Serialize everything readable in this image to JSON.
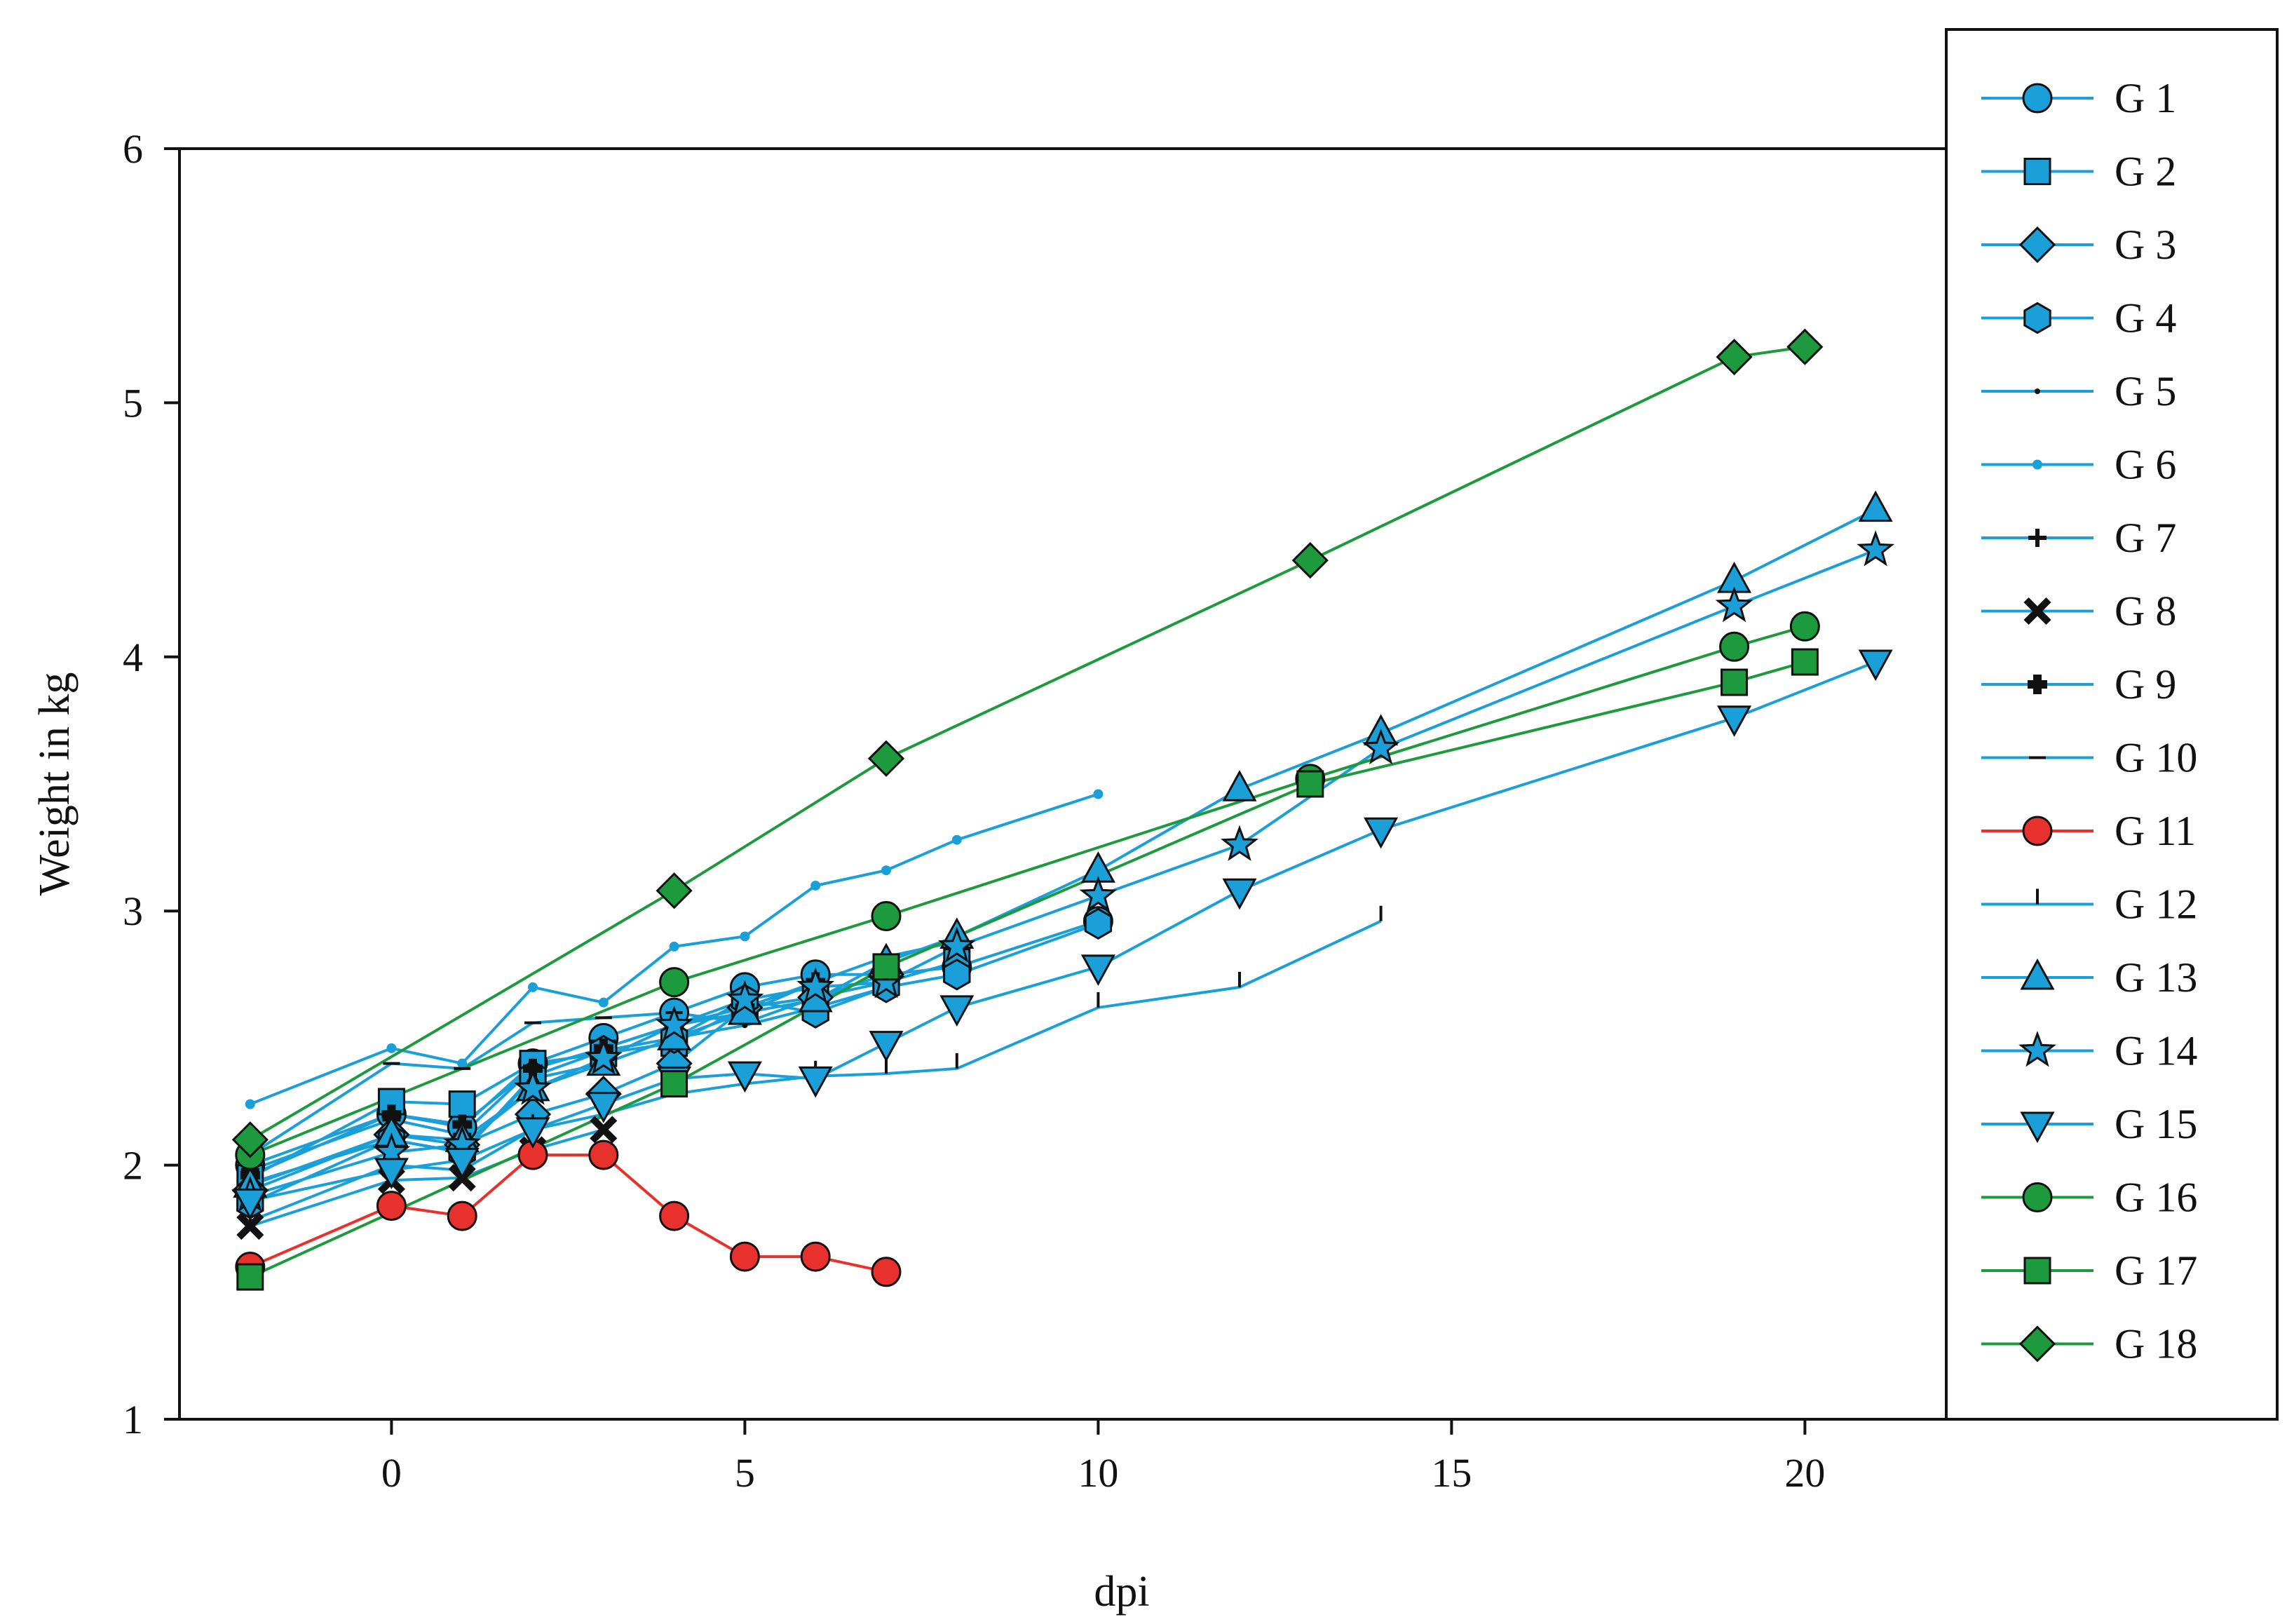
{
  "chart_data": {
    "type": "line",
    "title": "",
    "xlabel": "dpi",
    "ylabel": "Weight in kg",
    "xlim": [
      -3,
      22
    ],
    "ylim": [
      1,
      6
    ],
    "xticks": [
      0,
      5,
      10,
      15,
      20
    ],
    "yticks": [
      1,
      2,
      3,
      4,
      5,
      6
    ],
    "grid": false,
    "legend_position": "right",
    "colors": {
      "blue": "#1a9fd8",
      "red": "#e8302c",
      "green": "#1e9a3e",
      "edge": "#111111"
    },
    "series": [
      {
        "name": "G 1",
        "color": "blue",
        "marker": "circle",
        "x": [
          -2,
          0,
          1,
          2,
          3,
          4,
          5,
          6,
          7,
          8,
          10
        ],
        "y": [
          2.0,
          2.2,
          2.15,
          2.4,
          2.5,
          2.6,
          2.7,
          2.75,
          2.75,
          2.78,
          2.96
        ]
      },
      {
        "name": "G 2",
        "color": "blue",
        "marker": "square",
        "x": [
          -2,
          0,
          1,
          2,
          3,
          4,
          5,
          6,
          7,
          8
        ],
        "y": [
          1.95,
          2.25,
          2.24,
          2.4,
          2.44,
          2.48,
          2.62,
          2.66,
          2.72,
          2.8
        ]
      },
      {
        "name": "G 3",
        "color": "blue",
        "marker": "diamond",
        "x": [
          -2,
          0,
          1,
          2,
          3,
          4,
          5,
          6,
          7
        ],
        "y": [
          1.9,
          2.12,
          2.08,
          2.2,
          2.28,
          2.4,
          2.62,
          2.66,
          2.75
        ]
      },
      {
        "name": "G 4",
        "color": "blue",
        "marker": "hexagon",
        "x": [
          -2,
          0,
          1,
          2,
          3,
          4,
          5,
          6,
          7,
          8,
          10
        ],
        "y": [
          1.85,
          2.1,
          2.05,
          2.35,
          2.45,
          2.5,
          2.65,
          2.6,
          2.7,
          2.75,
          2.95
        ]
      },
      {
        "name": "G 5",
        "color": "blue",
        "marker": "dot",
        "x": [
          -2,
          0,
          1,
          2,
          3,
          4,
          5,
          6,
          7
        ],
        "y": [
          1.93,
          2.1,
          2.05,
          2.34,
          2.4,
          2.5,
          2.55,
          2.62,
          2.7
        ]
      },
      {
        "name": "G 6",
        "color": "blue",
        "marker": "smalldot",
        "x": [
          -2,
          0,
          1,
          2,
          3,
          4,
          5,
          6,
          7,
          8,
          10
        ],
        "y": [
          2.24,
          2.46,
          2.4,
          2.7,
          2.64,
          2.86,
          2.9,
          3.1,
          3.16,
          3.28,
          3.46
        ]
      },
      {
        "name": "G 7",
        "color": "blue",
        "marker": "plus",
        "x": [
          -2,
          0,
          1,
          2,
          3,
          4,
          5,
          6,
          7,
          8
        ],
        "y": [
          1.98,
          2.18,
          2.12,
          2.38,
          2.46,
          2.55,
          2.6,
          2.72,
          2.82,
          2.88
        ]
      },
      {
        "name": "G 8",
        "color": "blue",
        "marker": "x",
        "x": [
          -2,
          0,
          1,
          2,
          3
        ],
        "y": [
          1.76,
          1.94,
          1.95,
          2.06,
          2.14
        ]
      },
      {
        "name": "G 9",
        "color": "blue",
        "marker": "cross",
        "x": [
          -2,
          0,
          1,
          2,
          3,
          4,
          5,
          6
        ],
        "y": [
          1.96,
          2.2,
          2.16,
          2.38,
          2.46,
          2.55,
          2.62,
          2.72
        ]
      },
      {
        "name": "G 10",
        "color": "blue",
        "marker": "hline",
        "x": [
          -2,
          0,
          1,
          2,
          3,
          4,
          5,
          6
        ],
        "y": [
          2.04,
          2.4,
          2.38,
          2.56,
          2.58,
          2.6,
          2.56,
          2.66
        ]
      },
      {
        "name": "G 11",
        "color": "red",
        "marker": "circle",
        "x": [
          -2,
          0,
          1,
          2,
          3,
          4,
          5,
          6,
          7
        ],
        "y": [
          1.6,
          1.84,
          1.8,
          2.04,
          2.04,
          1.8,
          1.64,
          1.64,
          1.58
        ]
      },
      {
        "name": "G 12",
        "color": "blue",
        "marker": "vline",
        "x": [
          -2,
          0,
          1,
          2,
          3,
          4,
          5,
          6,
          7,
          8,
          10,
          12,
          14
        ],
        "y": [
          1.78,
          2.0,
          1.98,
          2.14,
          2.2,
          2.28,
          2.32,
          2.35,
          2.36,
          2.38,
          2.62,
          2.7,
          2.96
        ]
      },
      {
        "name": "G 13",
        "color": "blue",
        "marker": "triangle-up",
        "x": [
          -2,
          0,
          1,
          2,
          3,
          4,
          5,
          6,
          7,
          8,
          10,
          12,
          14,
          19,
          21
        ],
        "y": [
          1.92,
          2.12,
          2.1,
          2.3,
          2.4,
          2.5,
          2.6,
          2.65,
          2.8,
          2.9,
          3.16,
          3.48,
          3.7,
          4.3,
          4.58
        ]
      },
      {
        "name": "G 14",
        "color": "blue",
        "marker": "star",
        "x": [
          -2,
          0,
          1,
          2,
          3,
          4,
          5,
          6,
          7,
          8,
          10,
          12,
          14,
          19,
          21
        ],
        "y": [
          1.88,
          2.05,
          2.08,
          2.3,
          2.42,
          2.55,
          2.65,
          2.7,
          2.72,
          2.86,
          3.06,
          3.26,
          3.64,
          4.2,
          4.42
        ]
      },
      {
        "name": "G 15",
        "color": "blue",
        "marker": "triangle-down",
        "x": [
          -2,
          0,
          1,
          2,
          3,
          4,
          5,
          6,
          7,
          8,
          10,
          12,
          14,
          19,
          21
        ],
        "y": [
          1.86,
          1.98,
          2.02,
          2.14,
          2.24,
          2.34,
          2.36,
          2.34,
          2.48,
          2.62,
          2.78,
          3.08,
          3.32,
          3.76,
          3.98
        ]
      },
      {
        "name": "G 16",
        "color": "green",
        "marker": "circle",
        "x": [
          -2,
          4,
          7,
          13,
          19,
          20
        ],
        "y": [
          2.04,
          2.72,
          2.98,
          3.52,
          4.04,
          4.12
        ]
      },
      {
        "name": "G 17",
        "color": "green",
        "marker": "square",
        "x": [
          -2,
          4,
          7,
          13,
          19,
          20
        ],
        "y": [
          1.56,
          2.32,
          2.78,
          3.5,
          3.9,
          3.98
        ]
      },
      {
        "name": "G 18",
        "color": "green",
        "marker": "diamond",
        "x": [
          -2,
          4,
          7,
          13,
          19,
          20
        ],
        "y": [
          2.1,
          3.08,
          3.6,
          4.38,
          5.18,
          5.22
        ]
      }
    ]
  }
}
